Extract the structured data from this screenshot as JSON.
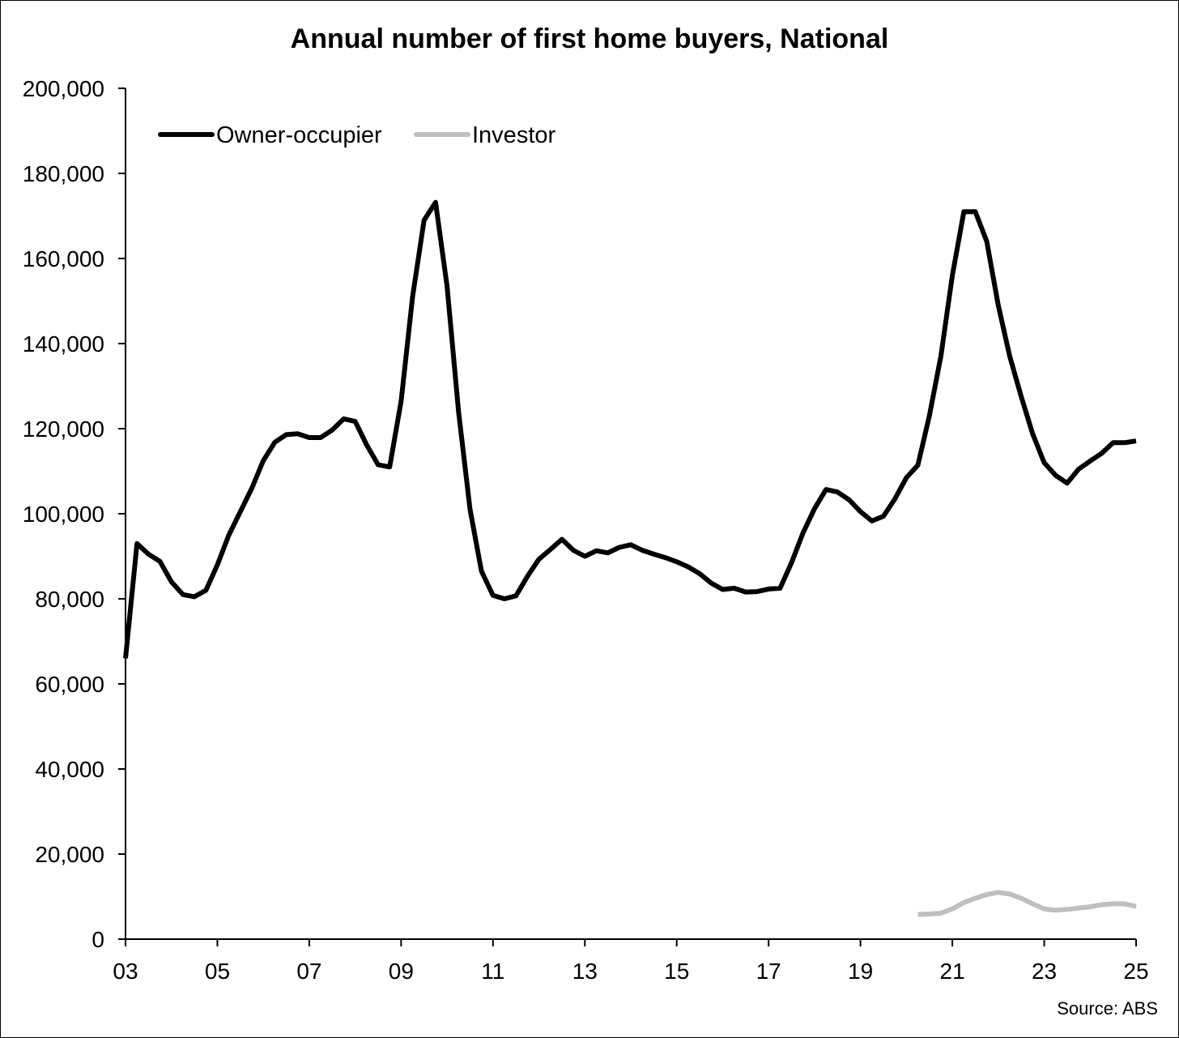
{
  "chart_data": {
    "type": "line",
    "title": "Annual number of first home buyers, National",
    "source": "Source: ABS",
    "xlabel": "",
    "ylabel": "",
    "xlim": [
      2003,
      2025
    ],
    "ylim": [
      0,
      200000
    ],
    "x_ticks": [
      2003,
      2005,
      2007,
      2009,
      2011,
      2013,
      2015,
      2017,
      2019,
      2021,
      2023,
      2025
    ],
    "x_tick_labels": [
      "03",
      "05",
      "07",
      "09",
      "11",
      "13",
      "15",
      "17",
      "19",
      "21",
      "23",
      "25"
    ],
    "y_ticks": [
      0,
      20000,
      40000,
      60000,
      80000,
      100000,
      120000,
      140000,
      160000,
      180000,
      200000
    ],
    "y_tick_labels": [
      "0",
      "20,000",
      "40,000",
      "60,000",
      "80,000",
      "100,000",
      "120,000",
      "140,000",
      "160,000",
      "180,000",
      "200,000"
    ],
    "grid": false,
    "legend_position": "top-left",
    "series": [
      {
        "name": "Owner-occupier",
        "color": "#000000",
        "x": [
          2003.0,
          2003.25,
          2003.5,
          2003.75,
          2004.0,
          2004.25,
          2004.5,
          2004.75,
          2005.0,
          2005.25,
          2005.5,
          2005.75,
          2006.0,
          2006.25,
          2006.5,
          2006.75,
          2007.0,
          2007.25,
          2007.5,
          2007.75,
          2008.0,
          2008.25,
          2008.5,
          2008.75,
          2009.0,
          2009.25,
          2009.5,
          2009.75,
          2010.0,
          2010.25,
          2010.5,
          2010.75,
          2011.0,
          2011.25,
          2011.5,
          2011.75,
          2012.0,
          2012.25,
          2012.5,
          2012.75,
          2013.0,
          2013.25,
          2013.5,
          2013.75,
          2014.0,
          2014.25,
          2014.5,
          2014.75,
          2015.0,
          2015.25,
          2015.5,
          2015.75,
          2016.0,
          2016.25,
          2016.5,
          2016.75,
          2017.0,
          2017.25,
          2017.5,
          2017.75,
          2018.0,
          2018.25,
          2018.5,
          2018.75,
          2019.0,
          2019.25,
          2019.5,
          2019.75,
          2020.0,
          2020.25,
          2020.5,
          2020.75,
          2021.0,
          2021.25,
          2021.5,
          2021.75,
          2022.0,
          2022.25,
          2022.5,
          2022.75,
          2023.0,
          2023.25,
          2023.5,
          2023.75,
          2024.0,
          2024.25,
          2024.5,
          2024.75,
          2025.0
        ],
        "values": [
          66000,
          93000,
          90500,
          88800,
          84000,
          81000,
          80500,
          82000,
          88000,
          95000,
          100500,
          106000,
          112500,
          116800,
          118600,
          118800,
          117900,
          117900,
          119700,
          122300,
          121700,
          116200,
          111500,
          111000,
          126500,
          151000,
          169000,
          173200,
          153500,
          124000,
          101000,
          86500,
          80800,
          80000,
          80700,
          85300,
          89300,
          91600,
          94000,
          91400,
          90000,
          91300,
          90800,
          92100,
          92700,
          91400,
          90500,
          89700,
          88700,
          87500,
          85900,
          83700,
          82200,
          82500,
          81600,
          81700,
          82300,
          82500,
          88500,
          95500,
          101200,
          105700,
          105100,
          103300,
          100500,
          98300,
          99400,
          103500,
          108500,
          111400,
          123000,
          137000,
          156000,
          171000,
          171000,
          164000,
          149000,
          137000,
          127500,
          118700,
          112000,
          109000,
          107200,
          110500,
          112400,
          114200,
          116700,
          116700,
          117100
        ]
      },
      {
        "name": "Investor",
        "color": "#bfbfbf",
        "x": [
          2020.25,
          2020.5,
          2020.75,
          2021.0,
          2021.25,
          2021.5,
          2021.75,
          2022.0,
          2022.25,
          2022.5,
          2022.75,
          2023.0,
          2023.25,
          2023.5,
          2023.75,
          2024.0,
          2024.25,
          2024.5,
          2024.75,
          2025.0
        ],
        "values": [
          5800,
          5900,
          6100,
          7100,
          8600,
          9600,
          10500,
          11000,
          10600,
          9600,
          8300,
          7100,
          6800,
          7000,
          7300,
          7600,
          8100,
          8300,
          8300,
          7700
        ]
      }
    ]
  }
}
